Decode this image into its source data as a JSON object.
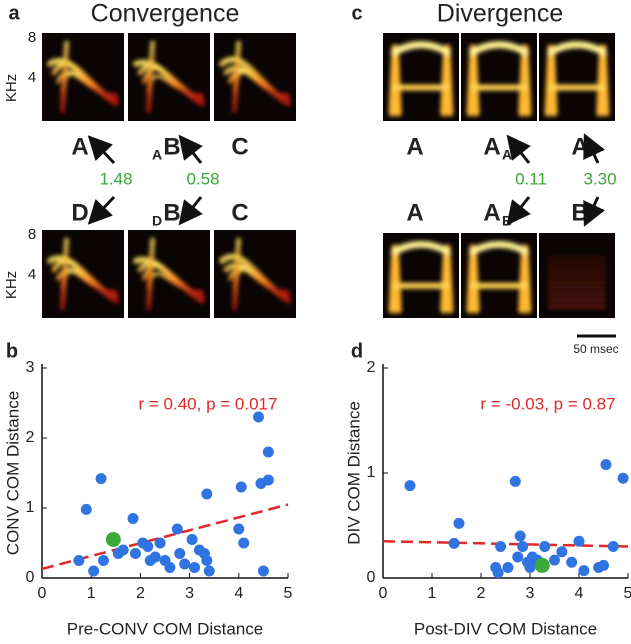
{
  "panel_a": {
    "label": "a",
    "title": "Convergence",
    "y_label": "KHz",
    "y_ticks": [
      8,
      4
    ],
    "top_syllables": [
      {
        "text": "A"
      },
      {
        "pre": "A",
        "text": "B"
      },
      {
        "text": "C"
      }
    ],
    "bottom_syllables": [
      {
        "text": "D"
      },
      {
        "pre": "D",
        "text": "B"
      },
      {
        "text": "C"
      }
    ],
    "distances": [
      "1.48",
      "0.58"
    ]
  },
  "panel_c": {
    "label": "c",
    "title": "Divergence",
    "top_syllables": [
      {
        "text": "A"
      },
      {
        "text": "A",
        "sub": "A"
      },
      {
        "text": "A"
      }
    ],
    "bottom_syllables": [
      {
        "text": "A"
      },
      {
        "text": "A",
        "sub": "B"
      },
      {
        "text": "B"
      }
    ],
    "distances": [
      "0.11",
      "3.30"
    ],
    "scale_bar": "50 msec"
  },
  "chart_data": [
    {
      "type": "scatter",
      "label": "b",
      "xlabel": "Pre-CONV COM Distance",
      "ylabel": "CONV COM Distance",
      "annotation": "r = 0.40, p = 0.017",
      "xlim": [
        0,
        5
      ],
      "ylim": [
        0,
        3
      ],
      "xticks": [
        0,
        1,
        2,
        3,
        4,
        5
      ],
      "yticks": [
        0,
        1,
        2,
        3
      ],
      "series": [
        {
          "color": "#2f74e0",
          "x": [
            0.75,
            0.9,
            1.05,
            1.2,
            1.25,
            1.55,
            1.65,
            1.85,
            1.9,
            2.05,
            2.15,
            2.2,
            2.3,
            2.4,
            2.5,
            2.6,
            2.75,
            2.8,
            2.9,
            3.05,
            3.1,
            3.2,
            3.3,
            3.35,
            3.35,
            3.4,
            4.0,
            4.05,
            4.1,
            4.4,
            4.45,
            4.5,
            4.6,
            4.6
          ],
          "values": [
            0.25,
            0.98,
            0.1,
            1.42,
            0.25,
            0.35,
            0.4,
            0.85,
            0.35,
            0.5,
            0.45,
            0.25,
            0.3,
            0.5,
            0.25,
            0.15,
            0.7,
            0.35,
            0.2,
            0.55,
            0.15,
            0.4,
            0.35,
            0.25,
            1.2,
            0.1,
            0.7,
            1.3,
            0.5,
            2.3,
            1.35,
            0.1,
            1.8,
            1.4
          ]
        },
        {
          "color": "#3aa83a",
          "x": [
            1.45
          ],
          "values": [
            0.55
          ]
        }
      ],
      "fit": {
        "color": "#e02828",
        "x": [
          0,
          5
        ],
        "values": [
          0.13,
          1.05
        ]
      }
    },
    {
      "type": "scatter",
      "label": "d",
      "xlabel": "Post-DIV COM Distance",
      "ylabel": "DIV COM Distance",
      "annotation": "r = -0.03, p = 0.87",
      "xlim": [
        0,
        5
      ],
      "ylim": [
        0,
        2
      ],
      "xticks": [
        0,
        1,
        2,
        3,
        4,
        5
      ],
      "yticks": [
        0,
        1,
        2
      ],
      "series": [
        {
          "color": "#2f74e0",
          "x": [
            0.55,
            1.45,
            1.55,
            2.3,
            2.35,
            2.4,
            2.55,
            2.7,
            2.75,
            2.8,
            2.85,
            2.95,
            3.0,
            3.05,
            3.15,
            3.3,
            3.5,
            3.65,
            3.85,
            4.0,
            4.1,
            4.4,
            4.5,
            4.55,
            4.7,
            4.9
          ],
          "values": [
            0.88,
            0.33,
            0.52,
            0.1,
            0.05,
            0.3,
            0.1,
            0.92,
            0.2,
            0.4,
            0.3,
            0.15,
            0.1,
            0.2,
            0.17,
            0.3,
            0.17,
            0.25,
            0.15,
            0.35,
            0.07,
            0.1,
            0.12,
            1.08,
            0.3,
            0.95
          ]
        },
        {
          "color": "#3aa83a",
          "x": [
            3.25
          ],
          "values": [
            0.12
          ]
        }
      ],
      "fit": {
        "color": "#e02828",
        "x": [
          0,
          5
        ],
        "values": [
          0.35,
          0.3
        ]
      }
    }
  ]
}
